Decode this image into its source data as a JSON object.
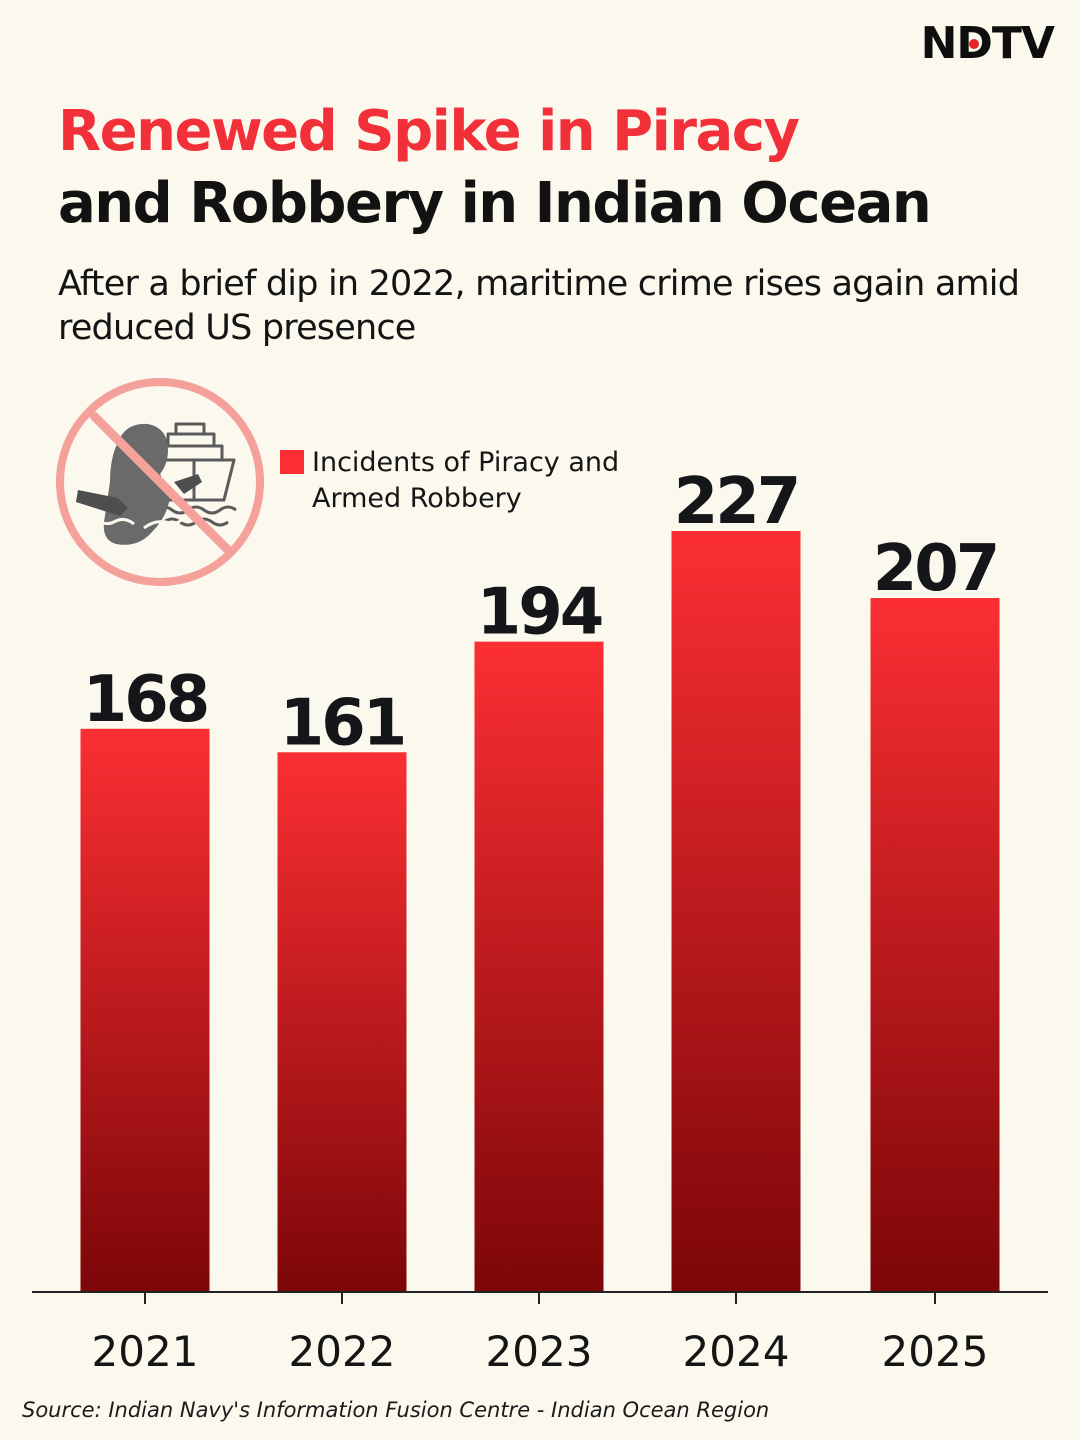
{
  "brand": {
    "logo_pre": "N",
    "logo_dot_letter": "D",
    "logo_post": "TV",
    "accent_color": "#e8232a"
  },
  "header": {
    "title_line1": "Renewed Spike in Piracy",
    "title_line2": "and Robbery in Indian Ocean",
    "subtitle": "After a brief dip in 2022, maritime crime rises again amid reduced US presence"
  },
  "icon": {
    "name": "no-piracy-icon"
  },
  "chart_data": {
    "type": "bar",
    "categories": [
      "2021",
      "2022",
      "2023",
      "2024",
      "2025"
    ],
    "values": [
      168,
      161,
      194,
      227,
      207
    ],
    "series": [
      {
        "name": "Incidents of Piracy and Armed Robbery",
        "values": [
          168,
          161,
          194,
          227,
          207
        ]
      }
    ],
    "legend_label": "Incidents of Piracy and Armed Robbery",
    "legend_position": "top-center",
    "ylim": [
      0,
      227
    ],
    "grid": false,
    "bar_color_top": "#fb2f33",
    "bar_color_bottom": "#7c0608"
  },
  "footer": {
    "source": "Source: Indian Navy's Information Fusion Centre - Indian Ocean Region"
  }
}
